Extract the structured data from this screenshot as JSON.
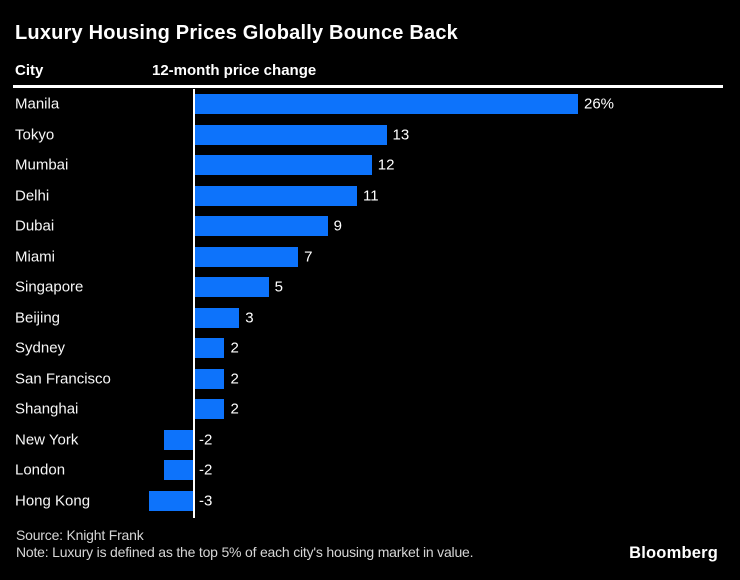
{
  "title": "Luxury Housing Prices Globally Bounce Back",
  "columns": {
    "city": "City",
    "change": "12-month price change"
  },
  "footer": {
    "source": "Source: Knight Frank",
    "note": "Note: Luxury is defined as the top 5% of each city's housing market in value."
  },
  "branding": {
    "logo": "Bloomberg"
  },
  "colors": {
    "background": "#000000",
    "bar": "#0d73fb",
    "text": "#ffffff",
    "muted": "#d6d6d6"
  },
  "chart_data": {
    "type": "bar",
    "orientation": "horizontal",
    "title": "Luxury Housing Prices Globally Bounce Back",
    "xlabel": "12-month price change",
    "ylabel": "City",
    "categories": [
      "Manila",
      "Tokyo",
      "Mumbai",
      "Delhi",
      "Dubai",
      "Miami",
      "Singapore",
      "Beijing",
      "Sydney",
      "San Francisco",
      "Shanghai",
      "New York",
      "London",
      "Hong Kong"
    ],
    "values": [
      26,
      13,
      12,
      11,
      9,
      7,
      5,
      3,
      2,
      2,
      2,
      -2,
      -2,
      -3
    ],
    "value_labels": [
      "26%",
      "13",
      "12",
      "11",
      "9",
      "7",
      "5",
      "3",
      "2",
      "2",
      "2",
      "-2",
      "-2",
      "-3"
    ],
    "xlim": [
      -3,
      26
    ],
    "unit": "percent",
    "grid": false,
    "legend": false,
    "source": "Knight Frank",
    "note": "Luxury is defined as the top 5% of each city's housing market in value."
  }
}
